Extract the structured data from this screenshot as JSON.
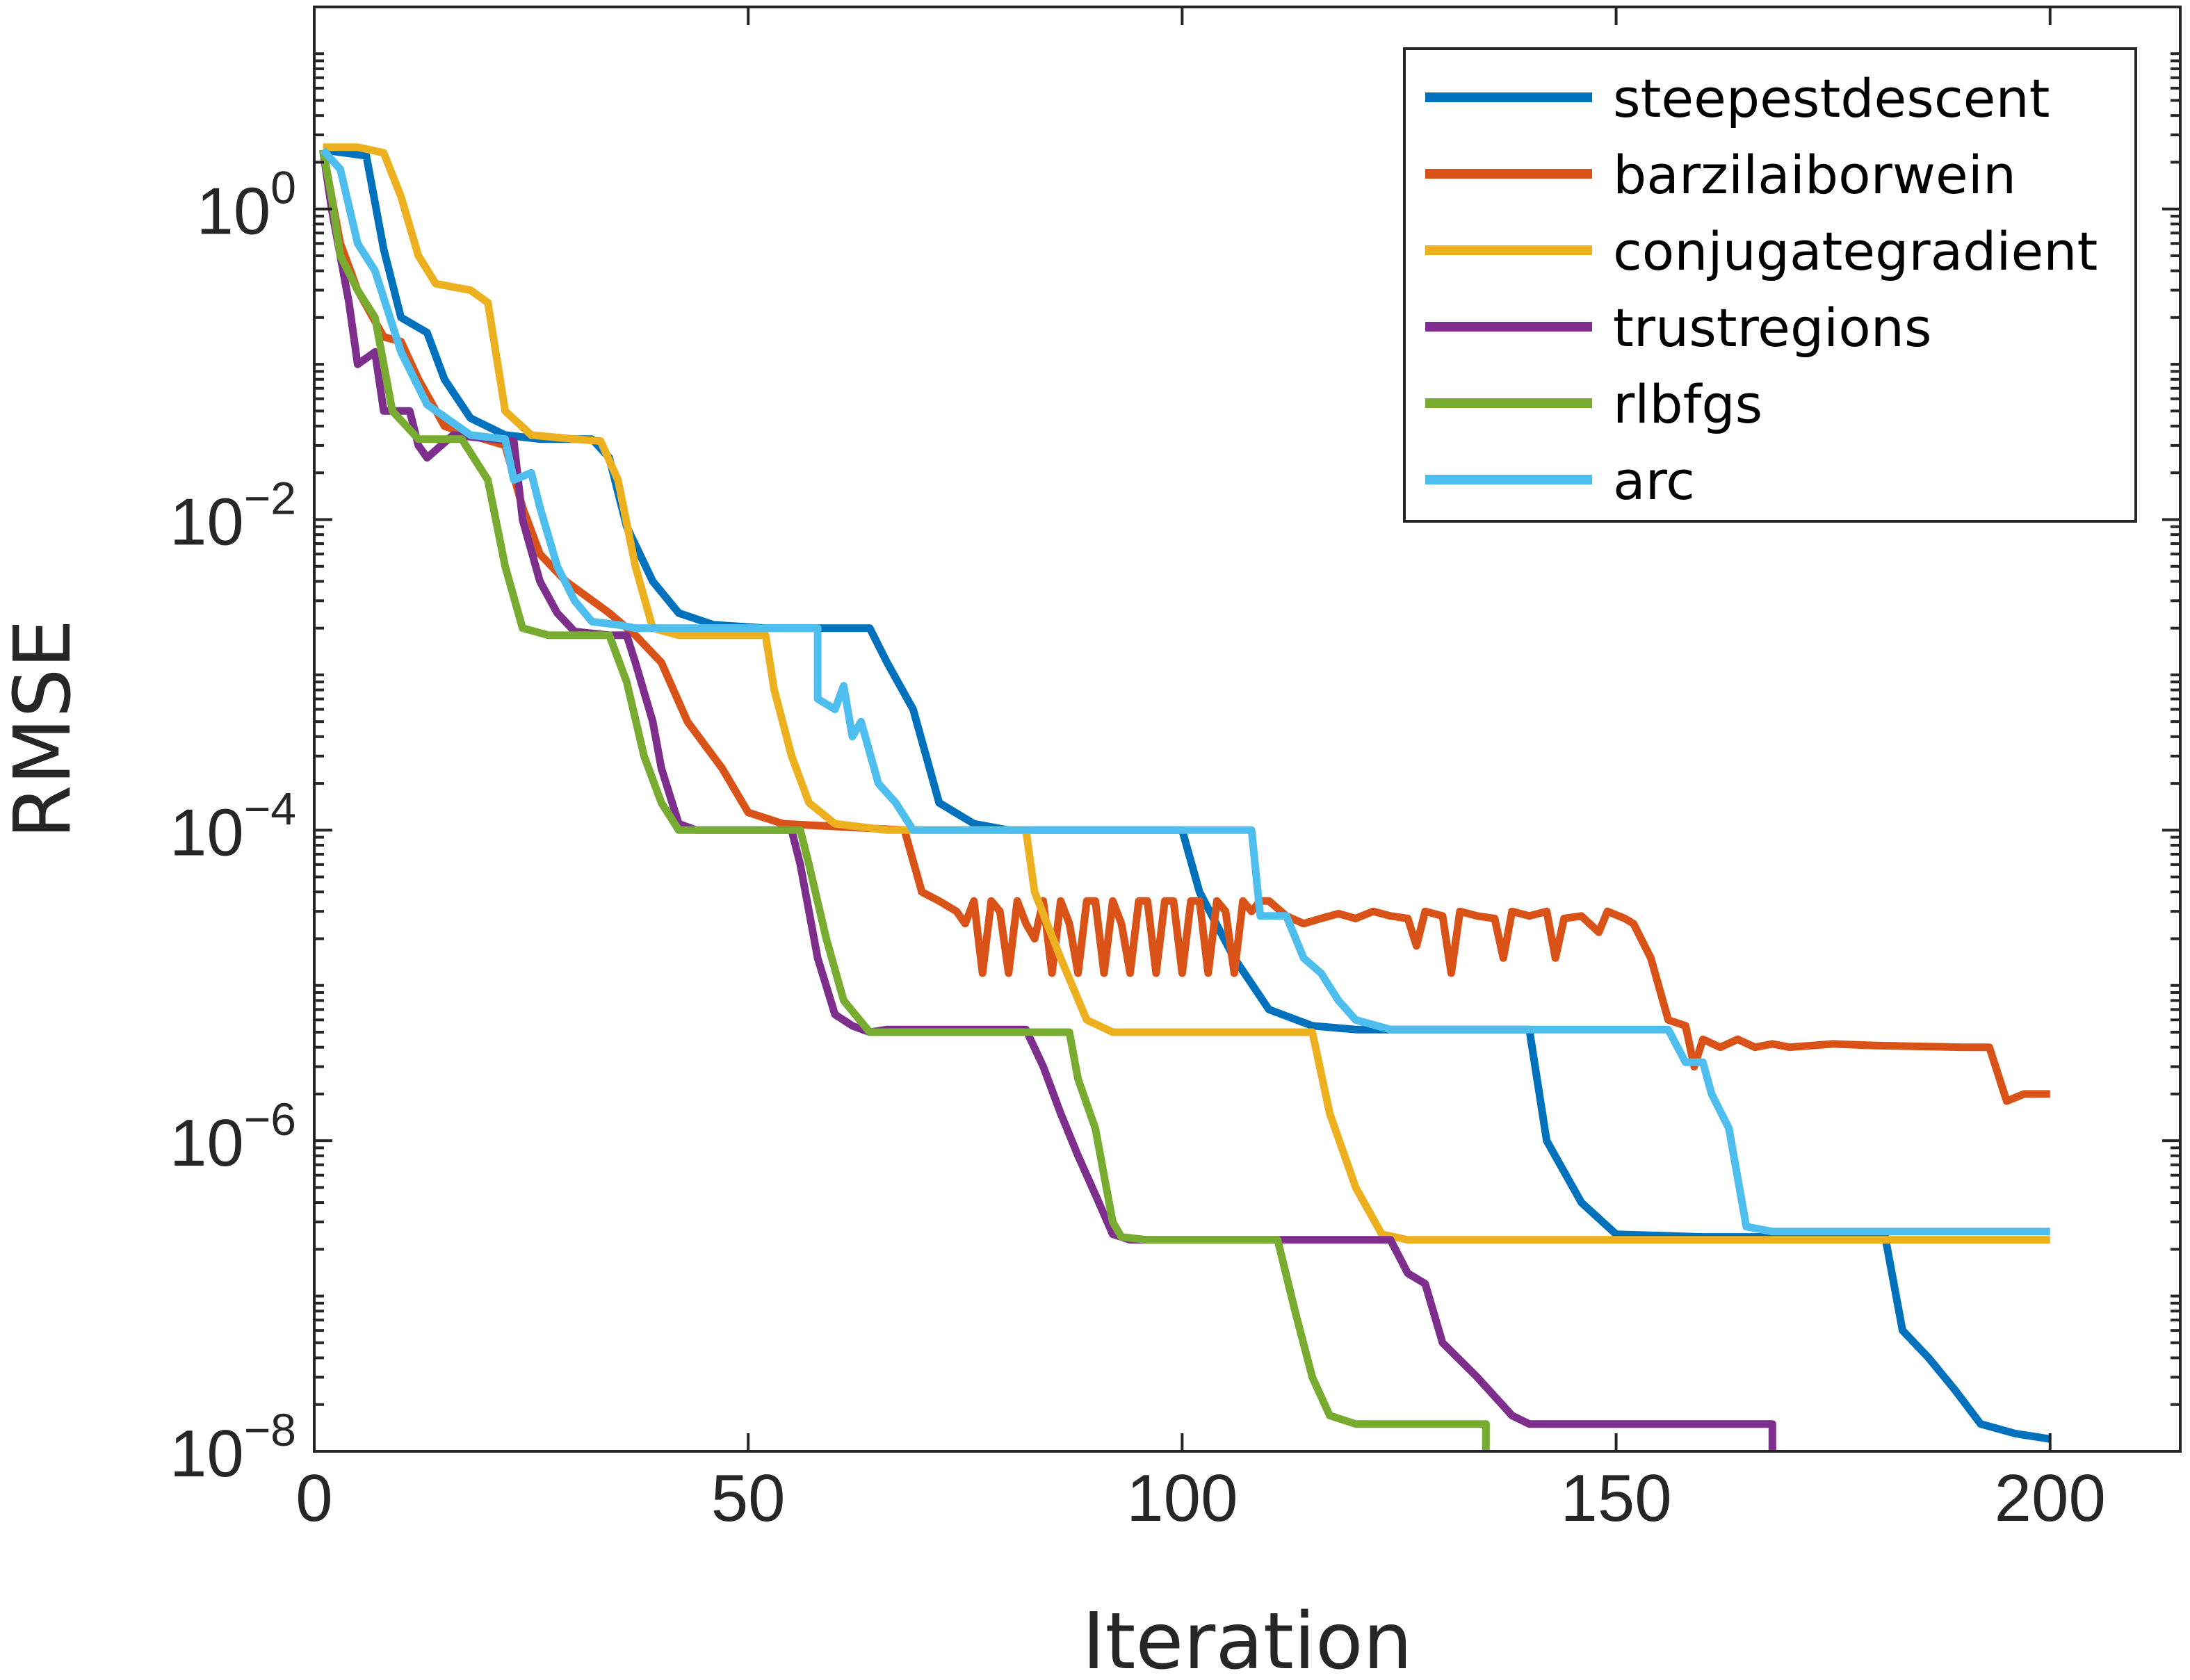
{
  "chart_data": {
    "type": "line",
    "xlabel": "Iteration",
    "ylabel": "RMSE",
    "xlim": [
      0,
      215
    ],
    "ylim": [
      1e-08,
      20
    ],
    "yscale": "log",
    "x_ticks": [
      0,
      50,
      100,
      150,
      200
    ],
    "x_tick_labels": [
      "0",
      "50",
      "100",
      "150",
      "200"
    ],
    "y_ticks": [
      1e-08,
      1e-06,
      0.0001,
      0.01,
      1
    ],
    "y_tick_labels": [
      {
        "base": "10",
        "exp": "−8"
      },
      {
        "base": "10",
        "exp": "−6"
      },
      {
        "base": "10",
        "exp": "−4"
      },
      {
        "base": "10",
        "exp": "−2"
      },
      {
        "base": "10",
        "exp": "0"
      }
    ],
    "grid": false,
    "legend_position": "top-right",
    "series": [
      {
        "name": "steepestdescent",
        "color": "#0072BD",
        "points": [
          [
            1,
            2.4
          ],
          [
            6,
            2.2
          ],
          [
            8,
            0.55
          ],
          [
            10,
            0.2
          ],
          [
            13,
            0.16
          ],
          [
            15,
            0.08
          ],
          [
            18,
            0.045
          ],
          [
            22,
            0.035
          ],
          [
            26,
            0.033
          ],
          [
            32,
            0.033
          ],
          [
            34,
            0.025
          ],
          [
            36,
            0.009
          ],
          [
            39,
            0.004
          ],
          [
            42,
            0.0025
          ],
          [
            46,
            0.0021
          ],
          [
            52,
            0.002
          ],
          [
            64,
            0.002
          ],
          [
            66,
            0.0012
          ],
          [
            69,
            0.0006
          ],
          [
            72,
            0.00015
          ],
          [
            76,
            0.00011
          ],
          [
            80,
            0.0001
          ],
          [
            100,
            0.0001
          ],
          [
            102,
            4e-05
          ],
          [
            106,
            1.5e-05
          ],
          [
            110,
            7e-06
          ],
          [
            115,
            5.5e-06
          ],
          [
            120,
            5.2e-06
          ],
          [
            140,
            5.2e-06
          ],
          [
            142,
            1e-06
          ],
          [
            146,
            4e-07
          ],
          [
            150,
            2.5e-07
          ],
          [
            160,
            2.4e-07
          ],
          [
            181,
            2.4e-07
          ],
          [
            183,
            6e-08
          ],
          [
            186,
            4e-08
          ],
          [
            189,
            2.5e-08
          ],
          [
            192,
            1.5e-08
          ],
          [
            196,
            1.3e-08
          ],
          [
            200,
            1.2e-08
          ]
        ]
      },
      {
        "name": "barzilaiborwein",
        "color": "#D95319",
        "points": [
          [
            1,
            2.4
          ],
          [
            3,
            0.6
          ],
          [
            5,
            0.3
          ],
          [
            8,
            0.15
          ],
          [
            10,
            0.14
          ],
          [
            12,
            0.08
          ],
          [
            15,
            0.04
          ],
          [
            18,
            0.035
          ],
          [
            22,
            0.03
          ],
          [
            24,
            0.012
          ],
          [
            26,
            0.006
          ],
          [
            29,
            0.004
          ],
          [
            34,
            0.0025
          ],
          [
            37,
            0.0018
          ],
          [
            40,
            0.0012
          ],
          [
            43,
            0.0005
          ],
          [
            47,
            0.00025
          ],
          [
            50,
            0.00013
          ],
          [
            54,
            0.00011
          ],
          [
            68,
            0.0001
          ],
          [
            70,
            4e-05
          ],
          [
            72,
            3.5e-05
          ],
          [
            74,
            3e-05
          ],
          [
            75,
            2.5e-05
          ],
          [
            76,
            3.5e-05
          ],
          [
            77,
            1.2e-05
          ],
          [
            78,
            3.5e-05
          ],
          [
            79,
            3e-05
          ],
          [
            80,
            1.2e-05
          ],
          [
            81,
            3.5e-05
          ],
          [
            82,
            2.5e-05
          ],
          [
            83,
            2e-05
          ],
          [
            84,
            3.5e-05
          ],
          [
            85,
            1.2e-05
          ],
          [
            86,
            3.5e-05
          ],
          [
            87,
            2.5e-05
          ],
          [
            88,
            1.2e-05
          ],
          [
            89,
            3.5e-05
          ],
          [
            90,
            3.5e-05
          ],
          [
            91,
            1.2e-05
          ],
          [
            92,
            3.5e-05
          ],
          [
            93,
            2.5e-05
          ],
          [
            94,
            1.2e-05
          ],
          [
            95,
            3.5e-05
          ],
          [
            96,
            3.5e-05
          ],
          [
            97,
            1.2e-05
          ],
          [
            98,
            3.5e-05
          ],
          [
            99,
            3.5e-05
          ],
          [
            100,
            1.2e-05
          ],
          [
            101,
            3.5e-05
          ],
          [
            102,
            3.5e-05
          ],
          [
            103,
            1.2e-05
          ],
          [
            104,
            3.5e-05
          ],
          [
            105,
            3e-05
          ],
          [
            106,
            1.2e-05
          ],
          [
            107,
            3.5e-05
          ],
          [
            108,
            3e-05
          ],
          [
            109,
            3.5e-05
          ],
          [
            110,
            3.5e-05
          ],
          [
            112,
            2.8e-05
          ],
          [
            114,
            2.5e-05
          ],
          [
            116,
            2.7e-05
          ],
          [
            118,
            2.9e-05
          ],
          [
            120,
            2.7e-05
          ],
          [
            122,
            3e-05
          ],
          [
            124,
            2.8e-05
          ],
          [
            126,
            2.7e-05
          ],
          [
            127,
            1.8e-05
          ],
          [
            128,
            3e-05
          ],
          [
            130,
            2.8e-05
          ],
          [
            131,
            1.2e-05
          ],
          [
            132,
            3e-05
          ],
          [
            134,
            2.8e-05
          ],
          [
            136,
            2.7e-05
          ],
          [
            137,
            1.5e-05
          ],
          [
            138,
            3e-05
          ],
          [
            140,
            2.8e-05
          ],
          [
            142,
            3e-05
          ],
          [
            143,
            1.5e-05
          ],
          [
            144,
            2.7e-05
          ],
          [
            146,
            2.8e-05
          ],
          [
            148,
            2.2e-05
          ],
          [
            149,
            3e-05
          ],
          [
            151,
            2.7e-05
          ],
          [
            152,
            2.5e-05
          ],
          [
            154,
            1.5e-05
          ],
          [
            156,
            6e-06
          ],
          [
            158,
            5.5e-06
          ],
          [
            159,
            3e-06
          ],
          [
            160,
            4.5e-06
          ],
          [
            162,
            4e-06
          ],
          [
            164,
            4.5e-06
          ],
          [
            166,
            4e-06
          ],
          [
            168,
            4.2e-06
          ],
          [
            170,
            4e-06
          ],
          [
            175,
            4.2e-06
          ],
          [
            180,
            4.1e-06
          ],
          [
            190,
            4e-06
          ],
          [
            193,
            4e-06
          ],
          [
            195,
            1.8e-06
          ],
          [
            197,
            2e-06
          ],
          [
            200,
            2e-06
          ]
        ]
      },
      {
        "name": "conjugategradient",
        "color": "#EDB120",
        "points": [
          [
            1,
            2.5
          ],
          [
            5,
            2.5
          ],
          [
            8,
            2.3
          ],
          [
            10,
            1.2
          ],
          [
            12,
            0.5
          ],
          [
            14,
            0.33
          ],
          [
            18,
            0.3
          ],
          [
            20,
            0.25
          ],
          [
            22,
            0.05
          ],
          [
            25,
            0.035
          ],
          [
            30,
            0.033
          ],
          [
            33,
            0.032
          ],
          [
            35,
            0.018
          ],
          [
            37,
            0.005
          ],
          [
            39,
            0.002
          ],
          [
            42,
            0.0018
          ],
          [
            50,
            0.0018
          ],
          [
            52,
            0.0018
          ],
          [
            53,
            0.0008
          ],
          [
            55,
            0.0003
          ],
          [
            57,
            0.00015
          ],
          [
            60,
            0.00011
          ],
          [
            66,
            0.0001
          ],
          [
            82,
            0.0001
          ],
          [
            83,
            4e-05
          ],
          [
            86,
            1.5e-05
          ],
          [
            89,
            6e-06
          ],
          [
            92,
            5e-06
          ],
          [
            115,
            5e-06
          ],
          [
            117,
            1.5e-06
          ],
          [
            120,
            5e-07
          ],
          [
            123,
            2.5e-07
          ],
          [
            126,
            2.3e-07
          ],
          [
            200,
            2.3e-07
          ]
        ]
      },
      {
        "name": "trustregions",
        "color": "#7E2F8E",
        "points": [
          [
            1,
            2.4
          ],
          [
            2,
            1.0
          ],
          [
            4,
            0.25
          ],
          [
            5,
            0.1
          ],
          [
            7,
            0.12
          ],
          [
            8,
            0.05
          ],
          [
            11,
            0.05
          ],
          [
            12,
            0.03
          ],
          [
            13,
            0.025
          ],
          [
            16,
            0.035
          ],
          [
            23,
            0.032
          ],
          [
            24,
            0.01
          ],
          [
            26,
            0.004
          ],
          [
            28,
            0.0025
          ],
          [
            30,
            0.0019
          ],
          [
            34,
            0.0018
          ],
          [
            36,
            0.0018
          ],
          [
            37,
            0.0012
          ],
          [
            39,
            0.0005
          ],
          [
            40,
            0.00025
          ],
          [
            42,
            0.00011
          ],
          [
            44,
            0.0001
          ],
          [
            55,
            0.0001
          ],
          [
            56,
            6e-05
          ],
          [
            58,
            1.5e-05
          ],
          [
            60,
            6.5e-06
          ],
          [
            62,
            5.5e-06
          ],
          [
            64,
            5e-06
          ],
          [
            66,
            5.2e-06
          ],
          [
            82,
            5.2e-06
          ],
          [
            84,
            3e-06
          ],
          [
            86,
            1.5e-06
          ],
          [
            88,
            8e-07
          ],
          [
            90,
            4.5e-07
          ],
          [
            92,
            2.5e-07
          ],
          [
            94,
            2.3e-07
          ],
          [
            124,
            2.3e-07
          ],
          [
            126,
            1.4e-07
          ],
          [
            128,
            1.2e-07
          ],
          [
            130,
            5e-08
          ],
          [
            134,
            3e-08
          ],
          [
            138,
            1.7e-08
          ],
          [
            140,
            1.5e-08
          ],
          [
            168,
            1.5e-08
          ],
          [
            168,
            1e-08
          ]
        ]
      },
      {
        "name": "rlbfgs",
        "color": "#77AC30",
        "points": [
          [
            1,
            2.4
          ],
          [
            2,
            1.2
          ],
          [
            3,
            0.5
          ],
          [
            5,
            0.3
          ],
          [
            7,
            0.2
          ],
          [
            9,
            0.05
          ],
          [
            12,
            0.033
          ],
          [
            17,
            0.033
          ],
          [
            20,
            0.018
          ],
          [
            22,
            0.005
          ],
          [
            24,
            0.002
          ],
          [
            27,
            0.0018
          ],
          [
            34,
            0.0018
          ],
          [
            36,
            0.0009
          ],
          [
            38,
            0.0003
          ],
          [
            40,
            0.00015
          ],
          [
            42,
            0.0001
          ],
          [
            56,
            0.0001
          ],
          [
            57,
            6e-05
          ],
          [
            59,
            2e-05
          ],
          [
            61,
            8e-06
          ],
          [
            64,
            5e-06
          ],
          [
            87,
            5e-06
          ],
          [
            88,
            2.5e-06
          ],
          [
            90,
            1.2e-06
          ],
          [
            92,
            3e-07
          ],
          [
            93,
            2.4e-07
          ],
          [
            96,
            2.3e-07
          ],
          [
            111,
            2.3e-07
          ],
          [
            113,
            8e-08
          ],
          [
            115,
            3e-08
          ],
          [
            117,
            1.7e-08
          ],
          [
            120,
            1.5e-08
          ],
          [
            135,
            1.5e-08
          ],
          [
            135,
            1e-08
          ]
        ]
      },
      {
        "name": "arc",
        "color": "#4DBEEE",
        "points": [
          [
            1,
            2.4
          ],
          [
            3,
            1.8
          ],
          [
            5,
            0.6
          ],
          [
            7,
            0.4
          ],
          [
            10,
            0.12
          ],
          [
            13,
            0.055
          ],
          [
            18,
            0.035
          ],
          [
            22,
            0.033
          ],
          [
            23,
            0.018
          ],
          [
            25,
            0.02
          ],
          [
            26,
            0.012
          ],
          [
            28,
            0.005
          ],
          [
            30,
            0.003
          ],
          [
            32,
            0.0022
          ],
          [
            35,
            0.0021
          ],
          [
            37,
            0.002
          ],
          [
            58,
            0.002
          ],
          [
            58,
            0.0007
          ],
          [
            60,
            0.0006
          ],
          [
            61,
            0.00085
          ],
          [
            62,
            0.0004
          ],
          [
            63,
            0.0005
          ],
          [
            65,
            0.0002
          ],
          [
            67,
            0.00015
          ],
          [
            69,
            0.0001
          ],
          [
            108,
            0.0001
          ],
          [
            109,
            2.8e-05
          ],
          [
            112,
            2.8e-05
          ],
          [
            114,
            1.5e-05
          ],
          [
            116,
            1.2e-05
          ],
          [
            118,
            8e-06
          ],
          [
            120,
            6e-06
          ],
          [
            124,
            5.2e-06
          ],
          [
            156,
            5.2e-06
          ],
          [
            158,
            3.2e-06
          ],
          [
            160,
            3.2e-06
          ],
          [
            161,
            2e-06
          ],
          [
            163,
            1.2e-06
          ],
          [
            165,
            2.8e-07
          ],
          [
            168,
            2.6e-07
          ],
          [
            200,
            2.6e-07
          ]
        ]
      }
    ]
  }
}
